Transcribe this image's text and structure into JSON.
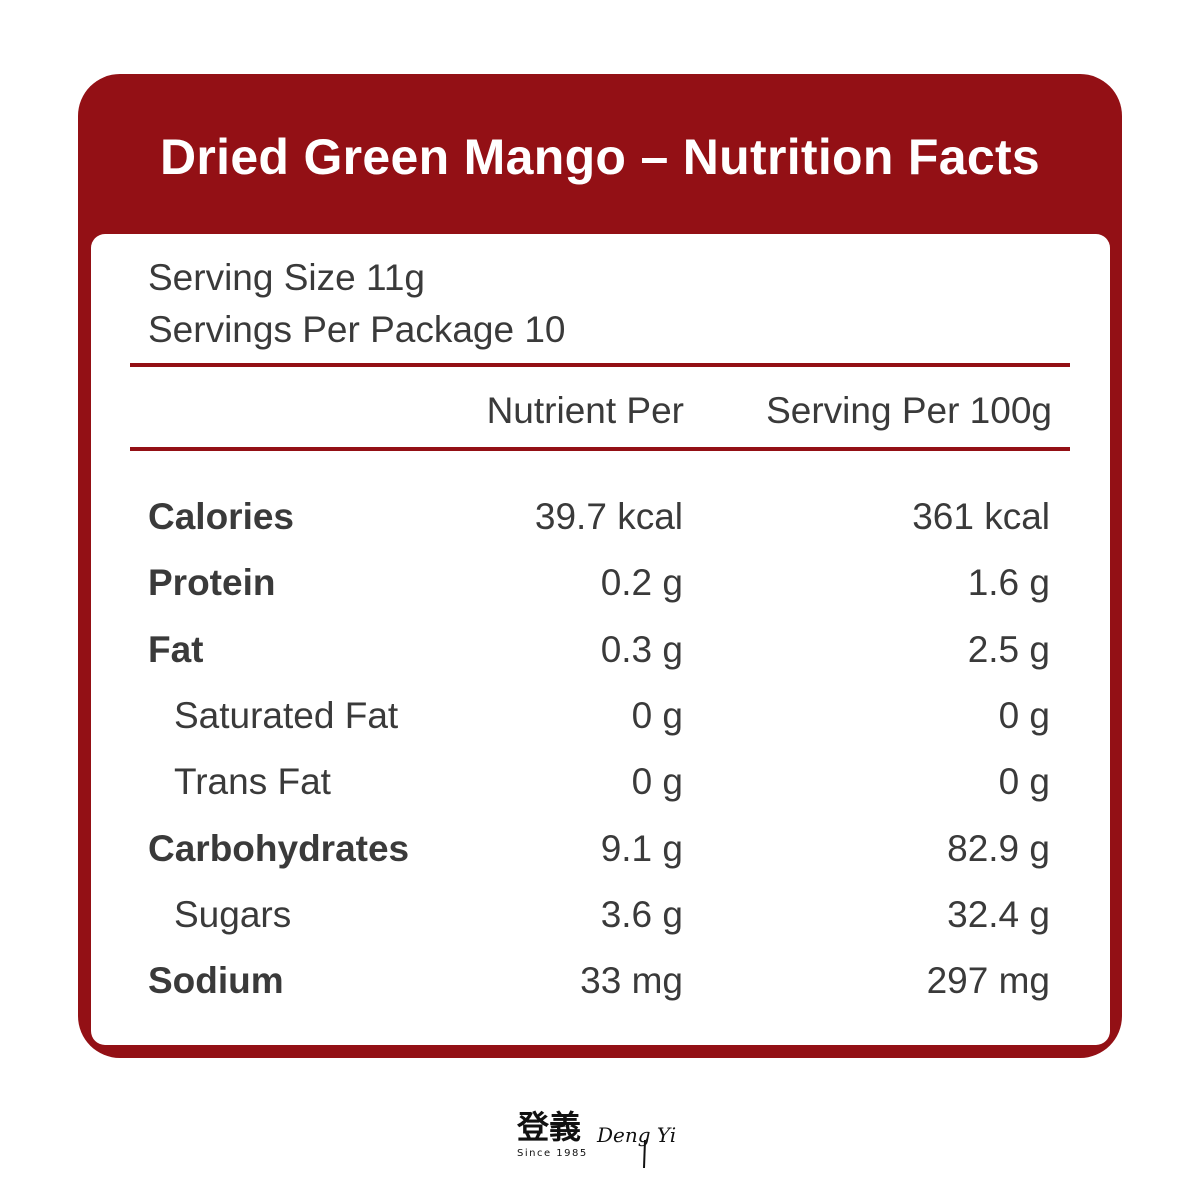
{
  "title": "Dried Green Mango – Nutrition Facts",
  "serving_size": "Serving Size 11g",
  "servings_per_package": "Servings Per Package 10",
  "columns": {
    "per_serving": "Nutrient Per",
    "per_100g": "Serving Per 100g"
  },
  "rows": [
    {
      "name": "Calories",
      "per_serving": "39.7 kcal",
      "per_100g": "361 kcal",
      "bold": true
    },
    {
      "name": "Protein",
      "per_serving": "0.2 g",
      "per_100g": "1.6 g",
      "bold": true
    },
    {
      "name": "Fat",
      "per_serving": "0.3 g",
      "per_100g": "2.5 g",
      "bold": true
    },
    {
      "name": "Saturated Fat",
      "per_serving": "0 g",
      "per_100g": "0 g",
      "bold": false
    },
    {
      "name": "Trans Fat",
      "per_serving": "0 g",
      "per_100g": "0 g",
      "bold": false
    },
    {
      "name": "Carbohydrates",
      "per_serving": "9.1 g",
      "per_100g": "82.9 g",
      "bold": true
    },
    {
      "name": "Sugars",
      "per_serving": "3.6 g",
      "per_100g": "32.4 g",
      "bold": false
    },
    {
      "name": "Sodium",
      "per_serving": "33 mg",
      "per_100g": "297 mg",
      "bold": true
    }
  ],
  "logo": {
    "chinese": "登義",
    "english": "Deng Yi",
    "tagline": "Since 1985"
  },
  "colors": {
    "accent": "#931015",
    "text": "#3a3a3a"
  }
}
